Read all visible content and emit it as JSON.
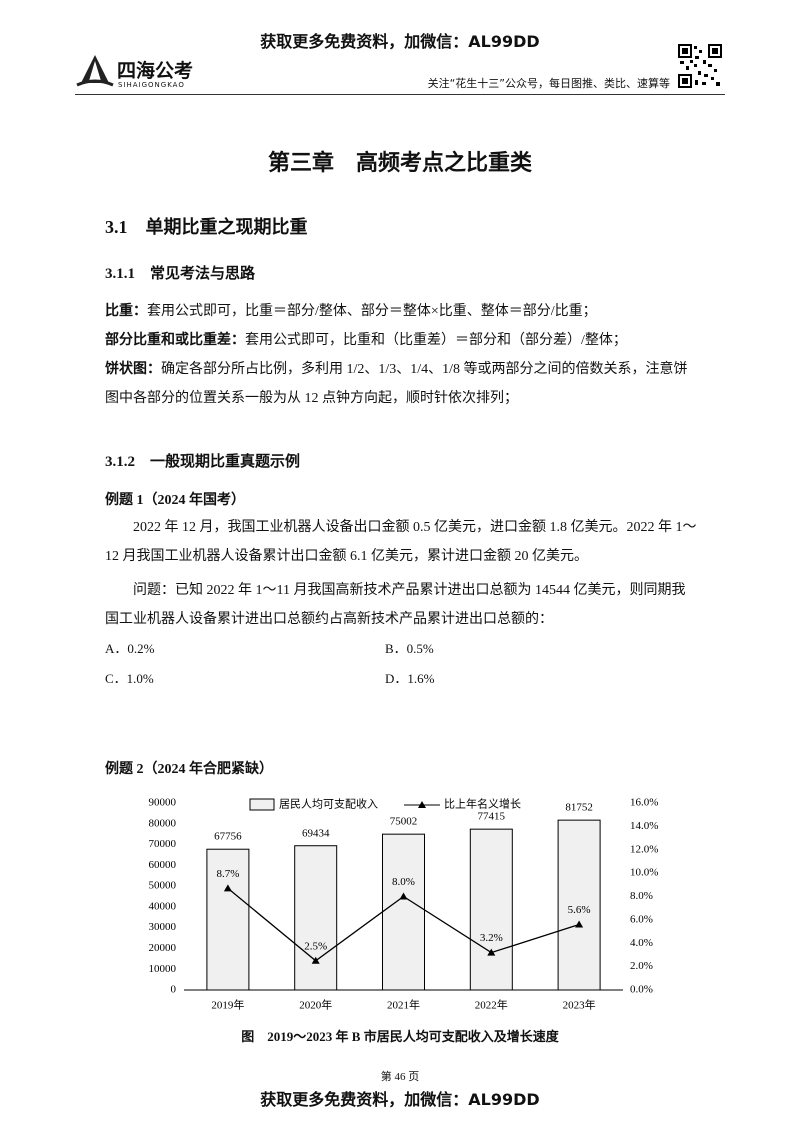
{
  "header": {
    "banner": "获取更多免费资料，加微信：AL99DD",
    "logo": "四海公考",
    "logo_sub": "SIHAIGONGKAO",
    "notice": "关注“花生十三”公众号，每日图推、类比、速算等"
  },
  "chapter_title": "第三章　高频考点之比重类",
  "section": "3.1　单期比重之现期比重",
  "subsection_1": {
    "title": "3.1.1　常见考法与思路",
    "items": [
      {
        "label": "比重：",
        "text": "套用公式即可，比重＝部分/整体、部分＝整体×比重、整体＝部分/比重；"
      },
      {
        "label": "部分比重和或比重差：",
        "text": "套用公式即可，比重和（比重差）＝部分和（部分差）/整体；"
      },
      {
        "label": "饼状图：",
        "text": "确定各部分所占比例，多利用 1/2、1/3、1/4、1/8 等或两部分之间的倍数关系，注意饼图中各部分的位置关系一般为从 12 点钟方向起，顺时针依次排列；"
      }
    ]
  },
  "subsection_2": {
    "title": "3.1.2　一般现期比重真题示例",
    "example_1": {
      "title": "例题 1（2024 年国考）",
      "paragraphs": [
        "2022 年 12 月，我国工业机器人设备出口金额 0.5 亿美元，进口金额 1.8 亿美元。2022 年 1～12 月我国工业机器人设备累计出口金额 6.1 亿美元，累计进口金额 20 亿美元。",
        "问题：已知 2022 年 1～11 月我国高新技术产品累计进出口总额为 14544 亿美元，则同期我国工业机器人设备累计进出口总额约占高新技术产品累计进出口总额的："
      ],
      "options": [
        "A．0.2%",
        "B．0.5%",
        "C．1.0%",
        "D．1.6%"
      ]
    },
    "example_2": {
      "title": "例题 2（2024 年合肥紧缺）"
    }
  },
  "chart_data": {
    "type": "bar_line",
    "caption": "图　2019～2023 年 B 市居民人均可支配收入及增长速度",
    "categories": [
      "2019年",
      "2020年",
      "2021年",
      "2022年",
      "2023年"
    ],
    "series": [
      {
        "name": "居民人均可支配收入",
        "type": "bar",
        "color": "#f0f0f0",
        "values": [
          67756,
          69434,
          75002,
          77415,
          81752
        ]
      },
      {
        "name": "比上年名义增长",
        "type": "line",
        "axis": "y2",
        "color": "#000000",
        "values": [
          8.7,
          2.5,
          8.0,
          3.2,
          5.6
        ],
        "value_labels": [
          "8.7%",
          "2.5%",
          "8.0%",
          "3.2%",
          "5.6%"
        ]
      }
    ],
    "ylim": [
      0,
      90000
    ],
    "yticks": [
      0,
      10000,
      20000,
      30000,
      40000,
      50000,
      60000,
      70000,
      80000,
      90000
    ],
    "y2lim": [
      0,
      16
    ],
    "y2ticks": [
      {
        "value": 0,
        "label": "0.0%"
      },
      {
        "value": 2,
        "label": "2.0%"
      },
      {
        "value": 4,
        "label": "4.0%"
      },
      {
        "value": 6,
        "label": "6.0%"
      },
      {
        "value": 8,
        "label": "8.0%"
      },
      {
        "value": 10,
        "label": "10.0%"
      },
      {
        "value": 12,
        "label": "12.0%"
      },
      {
        "value": 14,
        "label": "14.0%"
      },
      {
        "value": 16,
        "label": "16.0%"
      }
    ]
  },
  "footer": {
    "page": "第 46 页",
    "banner": "获取更多免费资料，加微信：AL99DD"
  }
}
